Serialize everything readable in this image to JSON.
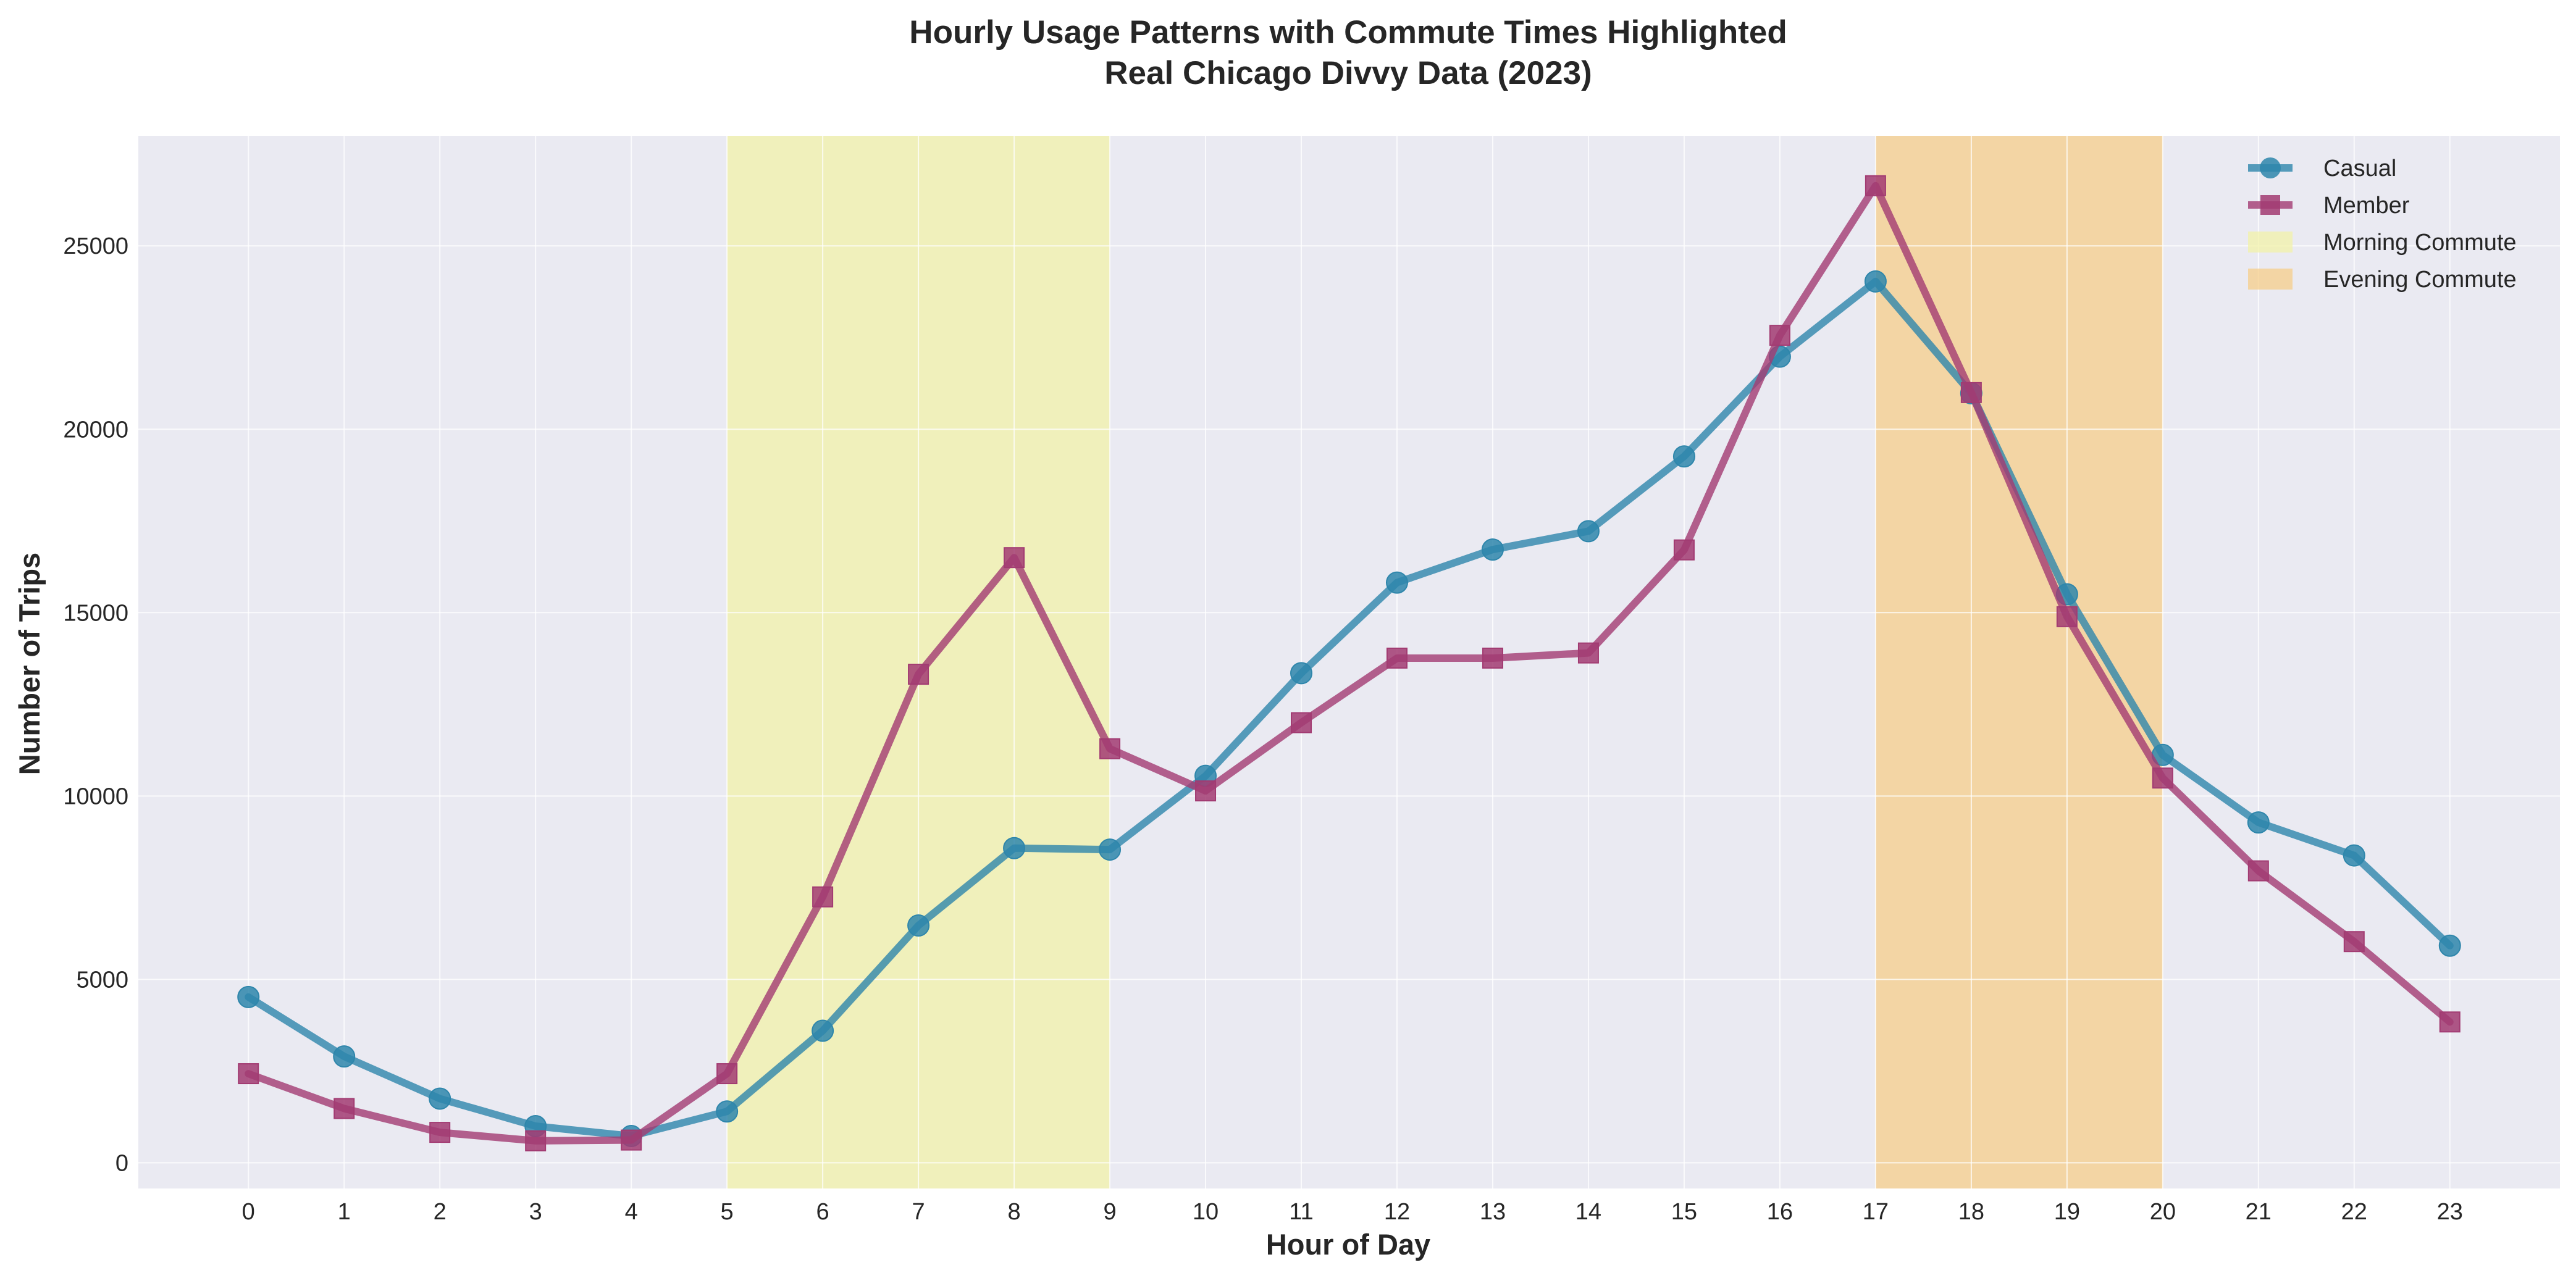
{
  "chart_data": {
    "type": "line",
    "title_line1": "Hourly Usage Patterns with Commute Times Highlighted",
    "title_line2": "Real Chicago Divvy Data (2023)",
    "xlabel": "Hour of Day",
    "ylabel": "Number of Trips",
    "x": [
      0,
      1,
      2,
      3,
      4,
      5,
      6,
      7,
      8,
      9,
      10,
      11,
      12,
      13,
      14,
      15,
      16,
      17,
      18,
      19,
      20,
      21,
      22,
      23
    ],
    "x_ticks": [
      "0",
      "1",
      "2",
      "3",
      "4",
      "5",
      "6",
      "7",
      "8",
      "9",
      "10",
      "11",
      "12",
      "13",
      "14",
      "15",
      "16",
      "17",
      "18",
      "19",
      "20",
      "21",
      "22",
      "23"
    ],
    "y_ticks": [
      "0",
      "5000",
      "10000",
      "15000",
      "20000",
      "25000"
    ],
    "y_tick_values": [
      0,
      5000,
      10000,
      15000,
      20000,
      25000
    ],
    "xlim": [
      -1.15,
      24.15
    ],
    "ylim": [
      -700,
      28000
    ],
    "grid": true,
    "legend_position": "top-right",
    "series": [
      {
        "name": "Casual",
        "color": "#2e86ab",
        "marker": "circle",
        "values": [
          4520,
          2900,
          1750,
          1000,
          730,
          1400,
          3600,
          6470,
          8580,
          8540,
          10550,
          13350,
          15820,
          16720,
          17220,
          19260,
          21980,
          24030,
          20980,
          15500,
          11120,
          9280,
          8380,
          5920
        ]
      },
      {
        "name": "Member",
        "color": "#a23b72",
        "marker": "square",
        "values": [
          2430,
          1480,
          830,
          600,
          620,
          2430,
          7250,
          13320,
          16500,
          11290,
          10140,
          12000,
          13760,
          13760,
          13900,
          16710,
          22560,
          26640,
          21000,
          14890,
          10490,
          7960,
          6030,
          3840
        ]
      }
    ],
    "shaded_regions": [
      {
        "name": "Morning Commute",
        "start": 5,
        "end": 9,
        "color": "#f2f2a8"
      },
      {
        "name": "Evening Commute",
        "start": 17,
        "end": 20,
        "color": "#f5cd8a"
      }
    ]
  },
  "colors": {
    "plot_background": "#eaeaf2",
    "grid": "#ffffff",
    "text": "#262626"
  }
}
